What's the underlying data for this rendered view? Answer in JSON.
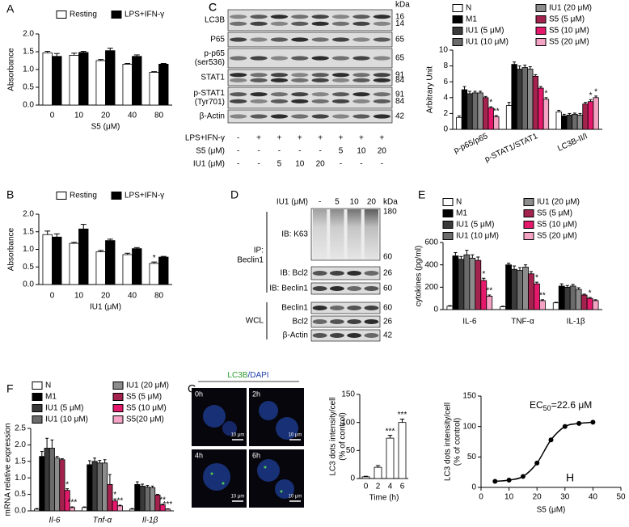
{
  "chart_data": [
    {
      "type": "bar",
      "panel": "A",
      "categories": [
        "0",
        "10",
        "20",
        "40",
        "80"
      ],
      "xlabel": "S5 (μM)",
      "ylabel": "Absorbance",
      "ylim": [
        0,
        2
      ],
      "yticks": [
        {
          "value": 0,
          "label": "0.0"
        },
        {
          "value": 0.5,
          "label": "0.5"
        },
        {
          "value": 1,
          "label": "1.0"
        },
        {
          "value": 1.5,
          "label": "1.5"
        },
        {
          "value": 2,
          "label": "2.0"
        }
      ],
      "series": [
        {
          "name": "Resting",
          "color": "#ffffff",
          "values": [
            1.47,
            1.4,
            1.25,
            1.15,
            0.92
          ],
          "errors": [
            0.04,
            0.06,
            0.03,
            0.02,
            0.02
          ]
        },
        {
          "name": "LPS+IFN-γ",
          "color": "#000000",
          "values": [
            1.37,
            1.48,
            1.53,
            1.37,
            1.15
          ],
          "errors": [
            0.08,
            0.03,
            0.07,
            0.04,
            0.02
          ]
        }
      ]
    },
    {
      "type": "bar",
      "panel": "B",
      "categories": [
        "0",
        "10",
        "20",
        "40",
        "80"
      ],
      "xlabel": "IU1 (μM)",
      "ylabel": "Absorbance",
      "ylim": [
        0,
        2
      ],
      "yticks": [
        {
          "value": 0,
          "label": "0.0"
        },
        {
          "value": 0.5,
          "label": "0.5"
        },
        {
          "value": 1,
          "label": "1.0"
        },
        {
          "value": 1.5,
          "label": "1.5"
        },
        {
          "value": 2,
          "label": "2.0"
        }
      ],
      "series": [
        {
          "name": "Resting",
          "color": "#ffffff",
          "values": [
            1.42,
            1.17,
            0.93,
            0.85,
            0.6
          ],
          "errors": [
            0.1,
            0.03,
            0.04,
            0.04,
            0.04
          ],
          "annotations": [
            null,
            null,
            null,
            null,
            "*"
          ]
        },
        {
          "name": "LPS+IFN-γ",
          "color": "#000000",
          "values": [
            1.35,
            1.58,
            1.25,
            1.02,
            0.78
          ],
          "errors": [
            0.09,
            0.13,
            0.04,
            0.03,
            0.02
          ]
        }
      ]
    },
    {
      "type": "bar",
      "panel": "C",
      "categories": [
        "p-p65/p65",
        "p-STAT1/STAT1",
        "LC3B-II/I"
      ],
      "ylabel": "Arbitrary Unit",
      "ylim": [
        0,
        10
      ],
      "yticks": [
        0,
        2,
        4,
        6,
        8,
        10
      ],
      "series": [
        {
          "name": "N",
          "color": "#ffffff",
          "values": [
            1.5,
            3.0,
            2.2
          ],
          "errors": [
            0.2,
            0.4,
            0.2
          ]
        },
        {
          "name": "M1",
          "color": "#000000",
          "values": [
            5.0,
            8.2,
            1.7
          ],
          "errors": [
            0.4,
            0.3,
            0.2
          ]
        },
        {
          "name": "IU1 (5 μM)",
          "color": "#3a3a3a",
          "values": [
            4.5,
            7.6,
            1.8
          ],
          "errors": [
            0.3,
            0.4,
            0.2
          ]
        },
        {
          "name": "IU1 (10 μM)",
          "color": "#6b6b6b",
          "values": [
            4.6,
            7.8,
            1.9
          ],
          "errors": [
            0.2,
            0.3,
            0.15
          ]
        },
        {
          "name": "IU1 (20 μM)",
          "color": "#8c8c8c",
          "values": [
            4.6,
            7.6,
            1.8
          ],
          "errors": [
            0.2,
            0.3,
            0.2
          ]
        },
        {
          "name": "S5 (5 μM)",
          "color": "#a3224e",
          "values": [
            4.0,
            6.7,
            3.2
          ],
          "errors": [
            0.15,
            0.2,
            0.2
          ]
        },
        {
          "name": "S5 (10 μM)",
          "color": "#e5196b",
          "values": [
            2.7,
            5.2,
            3.5
          ],
          "errors": [
            0.15,
            0.2,
            0.25
          ],
          "annotations": [
            "*",
            null,
            "*"
          ]
        },
        {
          "name": "S5 (20 μM)",
          "color": "#f5a3c4",
          "values": [
            1.6,
            3.8,
            4.0
          ],
          "errors": [
            0.15,
            0.2,
            0.2
          ],
          "annotations": [
            "**",
            "*",
            "*"
          ]
        }
      ]
    },
    {
      "type": "bar",
      "panel": "E",
      "categories": [
        "IL-6",
        "TNF-α",
        "IL-1β"
      ],
      "ylabel": "cytokines (pg/ml)",
      "ylim": [
        0,
        600
      ],
      "yticks": [
        0,
        200,
        400,
        600
      ],
      "series": [
        {
          "name": "N",
          "color": "#ffffff",
          "values": [
            30,
            25,
            60
          ],
          "errors": [
            5,
            5,
            5
          ]
        },
        {
          "name": "M1",
          "color": "#000000",
          "values": [
            480,
            400,
            210
          ],
          "errors": [
            30,
            15,
            20
          ]
        },
        {
          "name": "IU1 (5 μM)",
          "color": "#3a3a3a",
          "values": [
            450,
            360,
            200
          ],
          "errors": [
            25,
            30,
            15
          ]
        },
        {
          "name": "IU1 (10 μM)",
          "color": "#6b6b6b",
          "values": [
            490,
            350,
            210
          ],
          "errors": [
            40,
            25,
            15
          ]
        },
        {
          "name": "IU1 (20 μM)",
          "color": "#8c8c8c",
          "values": [
            460,
            380,
            180
          ],
          "errors": [
            30,
            20,
            15
          ]
        },
        {
          "name": "S5 (5 μM)",
          "color": "#a3224e",
          "values": [
            440,
            320,
            130
          ],
          "errors": [
            30,
            20,
            8
          ]
        },
        {
          "name": "S5 (10 μM)",
          "color": "#e5196b",
          "values": [
            260,
            230,
            100
          ],
          "errors": [
            20,
            15,
            8
          ],
          "annotations": [
            "*",
            "*",
            "*"
          ]
        },
        {
          "name": "S5 (20 μM)",
          "color": "#f5a3c4",
          "values": [
            120,
            80,
            80
          ],
          "errors": [
            10,
            8,
            8
          ],
          "annotations": [
            "**",
            "**",
            null
          ]
        }
      ]
    },
    {
      "type": "bar",
      "panel": "F",
      "categories": [
        "Il-6",
        "Tnf-α",
        "Il-1β"
      ],
      "ylabel": "mRNA relative expression",
      "ylim": [
        0,
        2.5
      ],
      "yticks": [
        {
          "value": 0,
          "label": "0.0"
        },
        {
          "value": 0.5,
          "label": "0.5"
        },
        {
          "value": 1,
          "label": "1.0"
        },
        {
          "value": 1.5,
          "label": "1.5"
        },
        {
          "value": 2,
          "label": "2.0"
        },
        {
          "value": 2.5,
          "label": "2.5"
        }
      ],
      "series": [
        {
          "name": "N",
          "color": "#ffffff",
          "values": [
            0.05,
            0.1,
            0.05
          ],
          "errors": [
            0.02,
            0.02,
            0.02
          ]
        },
        {
          "name": "M1",
          "color": "#000000",
          "values": [
            1.65,
            1.4,
            0.8
          ],
          "errors": [
            0.15,
            0.12,
            0.08
          ]
        },
        {
          "name": "IU1 (5 μM)",
          "color": "#3a3a3a",
          "values": [
            1.9,
            1.5,
            0.75
          ],
          "errors": [
            0.3,
            0.1,
            0.06
          ]
        },
        {
          "name": "IU1 (10 μM)",
          "color": "#6b6b6b",
          "values": [
            1.9,
            1.45,
            0.72
          ],
          "errors": [
            0.25,
            0.08,
            0.05
          ]
        },
        {
          "name": "IU1 (20 μM)",
          "color": "#8c8c8c",
          "values": [
            1.6,
            1.45,
            0.7
          ],
          "errors": [
            0.05,
            0.1,
            0.05
          ]
        },
        {
          "name": "S5 (5 μM)",
          "color": "#a3224e",
          "values": [
            1.55,
            0.8,
            0.48
          ],
          "errors": [
            0.03,
            0.3,
            0.02
          ]
        },
        {
          "name": "S5 (10 μM)",
          "color": "#e5196b",
          "values": [
            0.62,
            0.3,
            0.18
          ],
          "errors": [
            0.05,
            0.06,
            0.02
          ],
          "annotations": [
            "*",
            "*",
            "**"
          ]
        },
        {
          "name": "S5(20 μM)",
          "color": "#f5a3c4",
          "values": [
            0.1,
            0.15,
            0.05
          ],
          "errors": [
            0.02,
            0.02,
            0.01
          ],
          "annotations": [
            "***",
            "**",
            "***"
          ]
        }
      ]
    },
    {
      "type": "bar",
      "panel": "G",
      "categories": [
        "0",
        "2",
        "4",
        "6"
      ],
      "xlabel": "Time (h)",
      "ylabel": [
        "LC3 dots intensity/cell",
        "(% of control)"
      ],
      "ylim": [
        0,
        150
      ],
      "yticks": [
        0,
        50,
        100,
        150
      ],
      "series": [
        {
          "color": "#ffffff",
          "values": [
            3,
            20,
            72,
            100
          ],
          "errors": [
            1,
            3,
            5,
            6
          ],
          "annotations": [
            null,
            null,
            "***",
            "***"
          ]
        }
      ],
      "images": {
        "title": [
          "LC3B",
          "/DAPI"
        ],
        "frames": [
          "0h",
          "2h",
          "4h",
          "6h"
        ],
        "scale": "10 μm"
      }
    },
    {
      "type": "scatter",
      "panel": "H",
      "x": [
        5,
        10,
        15,
        20,
        25,
        30,
        35,
        40
      ],
      "values": [
        10,
        12,
        18,
        40,
        78,
        100,
        105,
        107
      ],
      "xlabel": "S5 (μM)",
      "ylabel": [
        "LC3 dots intensity/cell",
        "(% of control)"
      ],
      "xlim": [
        0,
        50
      ],
      "xticks": [
        0,
        10,
        20,
        30,
        40,
        50
      ],
      "ylim": [
        0,
        150
      ],
      "yticks": [
        0,
        50,
        100,
        150
      ],
      "annotation": [
        "EC",
        "50",
        "=22.6 μM"
      ],
      "color": "#000000"
    }
  ],
  "blots": [
    {
      "panel": "C",
      "kda_header": "kDa",
      "rows": [
        {
          "label": [
            "LC3B"
          ],
          "kda": [
            "16",
            "14"
          ]
        },
        {
          "label": [
            "P65"
          ],
          "kda": [
            "65"
          ]
        },
        {
          "label": [
            "p-p65",
            "(ser536)"
          ],
          "kda": [
            "65"
          ]
        },
        {
          "label": [
            "STAT1"
          ],
          "kda": [
            "91",
            "84"
          ]
        },
        {
          "label": [
            "p-STAT1",
            "(Tyr701)"
          ],
          "kda": [
            "91",
            "84"
          ]
        },
        {
          "label": [
            "β-Actin"
          ],
          "kda": [
            "42"
          ]
        }
      ],
      "conditions": [
        {
          "label": "LPS+IFN-γ",
          "marks": [
            "-",
            "+",
            "+",
            "+",
            "+",
            "+",
            "+",
            "+"
          ]
        },
        {
          "label": "S5 (μM)",
          "marks": [
            "-",
            "-",
            "-",
            "-",
            "-",
            "5",
            "10",
            "20"
          ]
        },
        {
          "label": "IU1 (μM)",
          "marks": [
            "-",
            "-",
            "5",
            "10",
            "20",
            "-",
            "-",
            "-"
          ]
        }
      ]
    },
    {
      "panel": "D",
      "header": "IU1 (μM)",
      "lanes": [
        "-",
        "5",
        "10",
        "20"
      ],
      "kda_header": "kDa",
      "groups": [
        [
          "IP:",
          "Beclin1"
        ],
        [
          "WCL"
        ]
      ],
      "rows": [
        {
          "label": [
            "IB: K63"
          ],
          "kda": [
            "180",
            "60"
          ]
        },
        {
          "label": [
            "IB: Bcl2"
          ],
          "kda": [
            "26"
          ]
        },
        {
          "label": [
            "IB: Beclin1"
          ],
          "kda": [
            "60"
          ]
        },
        {
          "label": [
            "Beclin1"
          ],
          "kda": [
            "60"
          ]
        },
        {
          "label": [
            "Bcl2"
          ],
          "kda": [
            "26"
          ]
        },
        {
          "label": [
            "β-Actin"
          ],
          "kda": [
            "42"
          ]
        }
      ]
    }
  ]
}
